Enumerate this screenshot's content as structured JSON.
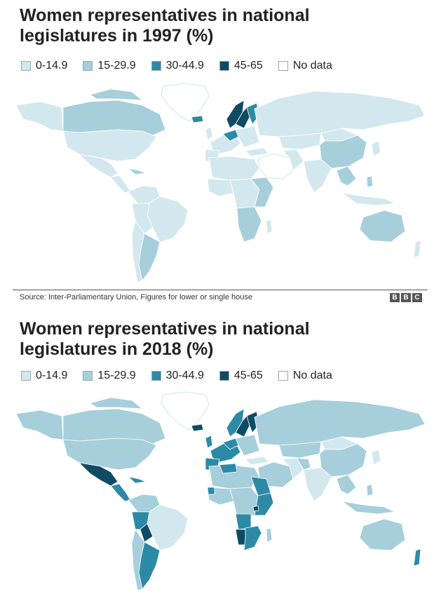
{
  "colors": {
    "c1": "#d3e8ee",
    "c2": "#a6cfdb",
    "c3": "#2c8aa6",
    "c4": "#0f4c63",
    "nodata": "#ffffff"
  },
  "legend": [
    {
      "label": "0-14.9",
      "color": "#d3e8ee"
    },
    {
      "label": "15-29.9",
      "color": "#a6cfdb"
    },
    {
      "label": "30-44.9",
      "color": "#2c8aa6"
    },
    {
      "label": "45-65",
      "color": "#0f4c63"
    },
    {
      "label": "No data",
      "color": "#ffffff"
    }
  ],
  "map1997": {
    "title_line1": "Women representatives in national",
    "title_line2": "legislatures in 1997 (%)",
    "source": "Source: Inter-Parliamentary Union, Figures for lower or single house",
    "logo": "BBC"
  },
  "map2018": {
    "title_line1": "Women representatives in national",
    "title_line2": "legislatures in 2018 (%)"
  }
}
